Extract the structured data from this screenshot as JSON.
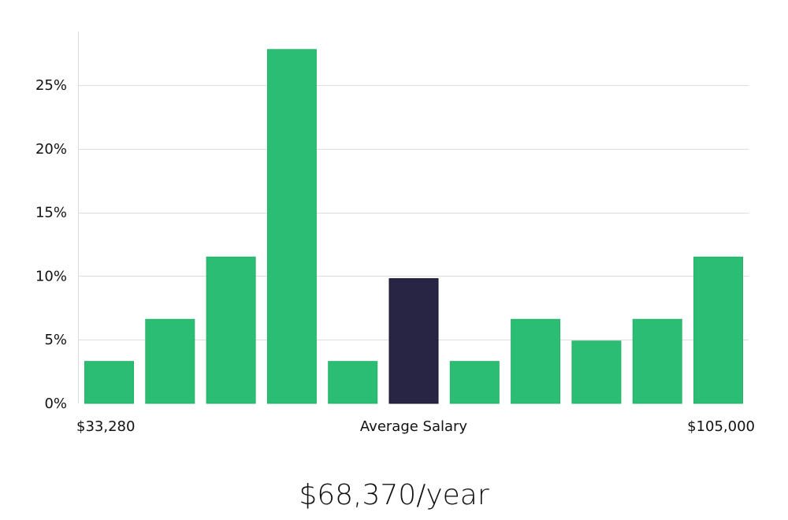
{
  "chart_data": {
    "type": "bar",
    "x_labels": {
      "left": "$33,280",
      "center": "Average Salary",
      "right": "$105,000"
    },
    "values": [
      3.3,
      6.6,
      11.5,
      27.8,
      3.3,
      9.8,
      3.3,
      6.6,
      4.9,
      6.6,
      11.5
    ],
    "highlight_index": 5,
    "y_ticks": [
      "0%",
      "5%",
      "10%",
      "15%",
      "20%",
      "25%"
    ],
    "y_tick_values": [
      0,
      5,
      10,
      15,
      20,
      25
    ],
    "ylim": [
      0,
      29
    ],
    "grid": true,
    "colors": {
      "bar": "#2bbd74",
      "highlight": "#272444",
      "grid": "#dddddd"
    }
  },
  "summary": {
    "average_salary": "$68,370/year"
  }
}
